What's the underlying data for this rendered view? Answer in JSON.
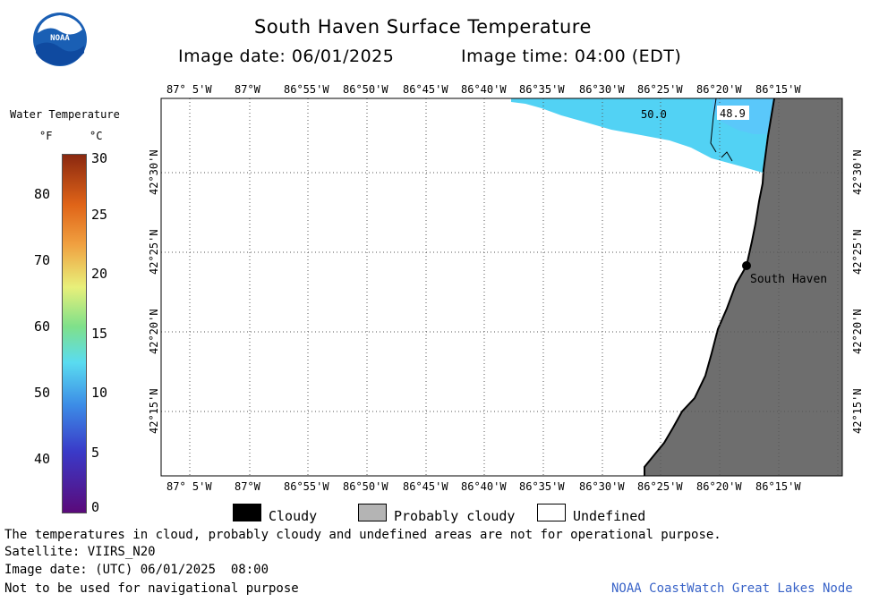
{
  "header": {
    "title": "South Haven Surface Temperature",
    "image_date_label": "Image date: 06/01/2025",
    "image_time_label": "Image time: 04:00 (EDT)"
  },
  "logo": {
    "text": "NOAA"
  },
  "colorbar": {
    "title": "Water Temperature",
    "unit_f": "°F",
    "unit_c": "°C",
    "f_ticks": [
      "80",
      "70",
      "60",
      "50",
      "40"
    ],
    "c_ticks": [
      "30",
      "25",
      "20",
      "15",
      "10",
      "5",
      "0"
    ],
    "range_c": [
      0,
      30
    ]
  },
  "map": {
    "lon_labels": [
      "87° 5'W",
      "87°W",
      "86°55'W",
      "86°50'W",
      "86°45'W",
      "86°40'W",
      "86°35'W",
      "86°30'W",
      "86°25'W",
      "86°20'W",
      "86°15'W"
    ],
    "lat_labels": [
      "42°30'N",
      "42°25'N",
      "42°20'N",
      "42°15'N"
    ],
    "temp_labels": [
      "50.0",
      "48.9"
    ],
    "place_label": "South Haven",
    "colors": {
      "land": "#6e6e6e",
      "water_warm": "#5ac8fa",
      "water_cool": "#52d2f4",
      "undefined": "#ffffff"
    }
  },
  "legend": {
    "items": [
      {
        "label": "Cloudy",
        "color": "#000000"
      },
      {
        "label": "Probably cloudy",
        "color": "#b4b4b4"
      },
      {
        "label": "Undefined",
        "color": "#ffffff"
      }
    ]
  },
  "footer": {
    "disclaimer": "The temperatures in cloud, probably cloudy and undefined areas are not for operational purpose.",
    "satellite": "Satellite: VIIRS_N20",
    "utc_date": "Image date: (UTC) 06/01/2025  08:00",
    "nav_warning": "Not to be used for navigational purpose",
    "credit": "NOAA CoastWatch Great Lakes Node"
  }
}
